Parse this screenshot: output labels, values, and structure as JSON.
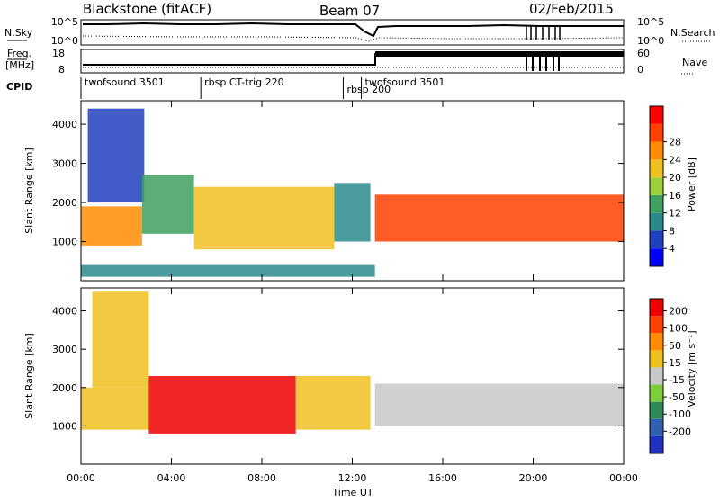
{
  "header": {
    "station": "Blackstone (fitACF)",
    "beam": "Beam 07",
    "date": "02/Feb/2015"
  },
  "top_panels": {
    "nsky_label": "N.Sky",
    "nsky_ticks": [
      "10^5",
      "10^0"
    ],
    "nsearch_label": "N.Search",
    "nsearch_ticks": [
      "10^5",
      "10^0"
    ],
    "freq_label_line1": "Freq.",
    "freq_label_line2": "[MHz]",
    "freq_ticks": [
      "18",
      "8"
    ],
    "nave_label": "Nave",
    "nave_ticks": [
      "60",
      "0"
    ],
    "cpid_label": "CPID",
    "cpid_segments": [
      {
        "label": "twofsound 3501",
        "start_hour": 0.0,
        "end_hour": 5.3
      },
      {
        "label": "rbsp CT-trig 220",
        "start_hour": 5.3,
        "end_hour": 9.3
      },
      {
        "label": "rbsp 200",
        "start_hour": 11.6,
        "end_hour": 12.4
      },
      {
        "label": "twofsound 3501",
        "start_hour": 12.4,
        "end_hour": 24.0
      }
    ]
  },
  "x_axis": {
    "label": "Time UT",
    "ticks": [
      "00:00",
      "04:00",
      "08:00",
      "12:00",
      "16:00",
      "20:00",
      "00:00"
    ],
    "range_hours": [
      0,
      24
    ]
  },
  "power_panel": {
    "ylabel": "Slant Range [km]",
    "yticks": [
      "1000",
      "2000",
      "3000",
      "4000"
    ],
    "colorbar_label": "Power [dB]",
    "colorbar_ticks": [
      "4",
      "8",
      "12",
      "16",
      "20",
      "24",
      "28"
    ],
    "colors": [
      "#0000ff",
      "#2040c0",
      "#2a8a8a",
      "#3fa060",
      "#9ed03a",
      "#f0c020",
      "#ff8c00",
      "#ff4000",
      "#ff0000"
    ]
  },
  "velocity_panel": {
    "ylabel": "Slant Range [km]",
    "yticks": [
      "1000",
      "2000",
      "3000",
      "4000"
    ],
    "colorbar_label": "Velocity [m s⁻¹]",
    "colorbar_ticks": [
      "200",
      "100",
      "50",
      "15",
      "-15",
      "-50",
      "-100",
      "-200"
    ],
    "colors": [
      "#2030c0",
      "#3060b0",
      "#2e8b57",
      "#7ccf3a",
      "#c8c8c8",
      "#f0c020",
      "#ff8c00",
      "#ff4000",
      "#ee0000"
    ]
  },
  "chart_data": [
    {
      "type": "heatmap",
      "title": "Power",
      "xlabel": "Time UT",
      "ylabel": "Slant Range [km]",
      "xlim": [
        0,
        24
      ],
      "ylim": [
        0,
        4600
      ],
      "colorbar": {
        "label": "Power [dB]",
        "range": [
          0,
          32
        ]
      },
      "bands": [
        {
          "start_hour": 0.0,
          "end_hour": 2.7,
          "range_low_km": 900,
          "range_high_km": 1900,
          "value_db": 22
        },
        {
          "start_hour": 0.3,
          "end_hour": 2.8,
          "range_low_km": 2000,
          "range_high_km": 4400,
          "value_db": 6
        },
        {
          "start_hour": 2.7,
          "end_hour": 5.0,
          "range_low_km": 1200,
          "range_high_km": 2700,
          "value_db": 14
        },
        {
          "start_hour": 5.0,
          "end_hour": 11.2,
          "range_low_km": 800,
          "range_high_km": 2400,
          "value_db": 18
        },
        {
          "start_hour": 11.2,
          "end_hour": 12.8,
          "range_low_km": 1000,
          "range_high_km": 2500,
          "value_db": 8
        },
        {
          "start_hour": 13.0,
          "end_hour": 24.0,
          "range_low_km": 1000,
          "range_high_km": 2200,
          "value_db": 26
        },
        {
          "start_hour": 0.0,
          "end_hour": 13.0,
          "range_low_km": 100,
          "range_high_km": 400,
          "value_db": 10
        }
      ]
    },
    {
      "type": "heatmap",
      "title": "Velocity",
      "xlabel": "Time UT",
      "ylabel": "Slant Range [km]",
      "xlim": [
        0,
        24
      ],
      "ylim": [
        0,
        4600
      ],
      "colorbar": {
        "label": "Velocity [m s⁻¹]",
        "range": [
          -200,
          200
        ]
      },
      "bands": [
        {
          "start_hour": 0.0,
          "end_hour": 3.0,
          "range_low_km": 900,
          "range_high_km": 2000,
          "value_ms": -30
        },
        {
          "start_hour": 0.5,
          "end_hour": 3.0,
          "range_low_km": 2000,
          "range_high_km": 4500,
          "value_ms": -60
        },
        {
          "start_hour": 3.0,
          "end_hour": 9.5,
          "range_low_km": 800,
          "range_high_km": 2300,
          "value_ms": -220
        },
        {
          "start_hour": 9.5,
          "end_hour": 12.8,
          "range_low_km": 900,
          "range_high_km": 2300,
          "value_ms": -80
        },
        {
          "start_hour": 13.0,
          "end_hour": 24.0,
          "range_low_km": 1000,
          "range_high_km": 2100,
          "value_ms": 0
        }
      ]
    }
  ]
}
